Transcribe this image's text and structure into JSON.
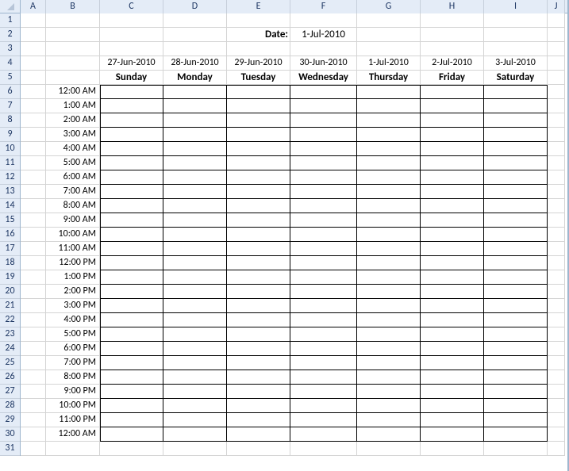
{
  "columns": {
    "letters": [
      "A",
      "B",
      "C",
      "D",
      "E",
      "F",
      "G",
      "H",
      "I",
      "J"
    ],
    "widths": [
      32,
      68,
      80,
      80,
      80,
      84,
      80,
      80,
      80,
      22
    ]
  },
  "rows": {
    "count": 31,
    "height": 18
  },
  "header": {
    "date_label": "Date:",
    "date_value": "1-Jul-2010"
  },
  "week": {
    "dates": [
      "27-Jun-2010",
      "28-Jun-2010",
      "29-Jun-2010",
      "30-Jun-2010",
      "1-Jul-2010",
      "2-Jul-2010",
      "3-Jul-2010"
    ],
    "days": [
      "Sunday",
      "Monday",
      "Tuesday",
      "Wednesday",
      "Thursday",
      "Friday",
      "Saturday"
    ]
  },
  "times": [
    "12:00 AM",
    "1:00 AM",
    "2:00 AM",
    "3:00 AM",
    "4:00 AM",
    "5:00 AM",
    "6:00 AM",
    "7:00 AM",
    "8:00 AM",
    "9:00 AM",
    "10:00 AM",
    "11:00 AM",
    "12:00 PM",
    "1:00 PM",
    "2:00 PM",
    "3:00 PM",
    "4:00 PM",
    "5:00 PM",
    "6:00 PM",
    "7:00 PM",
    "8:00 PM",
    "9:00 PM",
    "10:00 PM",
    "11:00 PM",
    "12:00 AM"
  ],
  "colors": {
    "header_bg": "#e4ecf7",
    "header_border": "#9eb6ce",
    "grid_line": "#d4d4d4",
    "header_grid": "#c6cfdb",
    "text_header": "#1f3864",
    "text": "#000000",
    "sched_border": "#000000",
    "background": "#ffffff"
  },
  "layout": {
    "date_row": 2,
    "date_label_col": 4,
    "date_value_col": 5,
    "week_date_row": 4,
    "week_day_row": 5,
    "times_start_row": 6,
    "times_col": 1,
    "sched_cols": [
      2,
      3,
      4,
      5,
      6,
      7,
      8
    ]
  }
}
